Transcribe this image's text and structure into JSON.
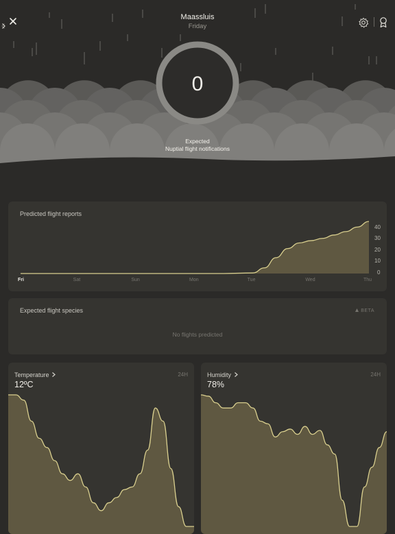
{
  "header": {
    "location": "Maassluis",
    "day": "Friday",
    "prev_icon": "chevron-left-icon",
    "next_icon": "chevron-right-icon",
    "close_icon": "close-icon",
    "settings_icon": "gear-icon",
    "badge_icon": "award-ribbon-icon"
  },
  "hero": {
    "count": "0",
    "caption_line1": "Expected",
    "caption_line2": "Nuptial flight notifications"
  },
  "flight_reports": {
    "title": "Predicted flight reports",
    "x_ticks": [
      "Fri",
      "Sat",
      "Sun",
      "Mon",
      "Tue",
      "Wed",
      "Thu"
    ],
    "y_ticks": [
      "40",
      "30",
      "20",
      "10",
      "0"
    ]
  },
  "species": {
    "title": "Expected flight species",
    "badge": "BETA",
    "empty_message": "No flights predicted"
  },
  "temperature": {
    "title": "Temperature",
    "value": "12ºC",
    "range": "24H"
  },
  "humidity": {
    "title": "Humidity",
    "value": "78%",
    "range": "24H"
  },
  "colors": {
    "background": "#2b2a28",
    "card": "#353430",
    "accent_line": "#d9cf8e",
    "accent_fill": "#5f5841"
  },
  "chart_data": [
    {
      "type": "area",
      "title": "Predicted flight reports",
      "categories": [
        "Fri",
        "Sat",
        "Sun",
        "Mon",
        "Tue",
        "Wed",
        "Thu"
      ],
      "x": [
        0,
        0.5,
        1,
        1.5,
        2,
        2.5,
        3,
        3.5,
        4,
        4.2,
        4.4,
        4.6,
        4.8,
        5,
        5.2,
        5.4,
        5.6,
        5.8,
        6
      ],
      "values": [
        0,
        0,
        0,
        0,
        0,
        0,
        0,
        0,
        0.5,
        5,
        14,
        22,
        27,
        29,
        31,
        34,
        37,
        41,
        46
      ],
      "ylim": [
        0,
        46
      ],
      "yticks": [
        0,
        10,
        20,
        30,
        40
      ]
    },
    {
      "type": "area",
      "title": "Temperature",
      "values": [
        100,
        100,
        96,
        80,
        67,
        60,
        50,
        40,
        35,
        40,
        30,
        18,
        12,
        18,
        22,
        28,
        30,
        40,
        58,
        90,
        80,
        44,
        15,
        0,
        0
      ],
      "ylim": [
        0,
        100
      ]
    },
    {
      "type": "area",
      "title": "Humidity",
      "values": [
        100,
        99,
        94,
        90,
        90,
        94,
        94,
        90,
        80,
        78,
        68,
        72,
        74,
        70,
        76,
        70,
        73,
        62,
        55,
        20,
        0,
        0,
        30,
        45,
        60,
        72
      ],
      "ylim": [
        0,
        100
      ]
    }
  ]
}
